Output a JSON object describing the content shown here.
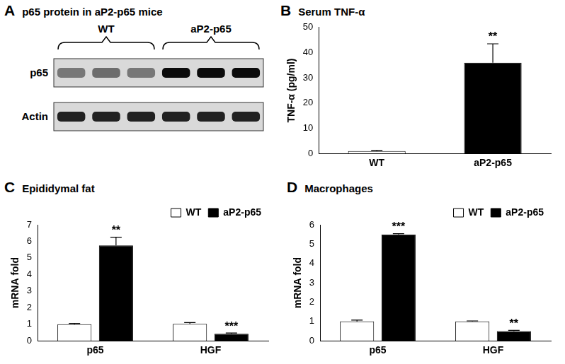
{
  "blot": {
    "panel": "A",
    "title": "p65 protein in aP2-p65 mice",
    "groups": [
      {
        "label": "WT",
        "lanes": 3
      },
      {
        "label": "aP2-p65",
        "lanes": 3
      }
    ],
    "rows": [
      {
        "label": "p65",
        "intensity": [
          0.45,
          0.5,
          0.45,
          0.95,
          0.95,
          0.95
        ]
      },
      {
        "label": "Actin",
        "intensity": [
          0.85,
          0.85,
          0.85,
          0.85,
          0.85,
          0.85
        ]
      }
    ]
  },
  "chart_data": [
    {
      "panel": "B",
      "type": "bar",
      "title": "Serum TNF-α",
      "y_label": "TNF-α (pg/ml)",
      "categories": [
        "WT",
        "aP2-p65"
      ],
      "values": [
        1,
        36
      ],
      "errors": [
        0.3,
        7.5
      ],
      "annotations": [
        null,
        "**"
      ],
      "colors": [
        "#ffffff",
        "#000000"
      ],
      "ylim": [
        0,
        50
      ],
      "yticks": [
        0,
        10,
        20,
        30,
        40,
        50
      ],
      "grid": false
    },
    {
      "panel": "C",
      "type": "bar",
      "title": "Epididymal fat",
      "y_label": "mRNA fold",
      "categories": [
        "p65",
        "HGF"
      ],
      "series": [
        {
          "name": "WT",
          "color": "#ffffff",
          "values": [
            1,
            1.02
          ],
          "errors": [
            0.05,
            0.08
          ],
          "annotations": [
            null,
            null
          ]
        },
        {
          "name": "aP2-p65",
          "color": "#000000",
          "values": [
            5.75,
            0.42
          ],
          "errors": [
            0.5,
            0.05
          ],
          "annotations": [
            "**",
            "***"
          ]
        }
      ],
      "ylim": [
        0,
        7
      ],
      "yticks": [
        0,
        1,
        2,
        3,
        4,
        5,
        6,
        7
      ],
      "grid": false,
      "legend": "top-right"
    },
    {
      "panel": "D",
      "type": "bar",
      "title": "Macrophages",
      "y_label": "mRNA fold",
      "categories": [
        "p65",
        "HGF"
      ],
      "series": [
        {
          "name": "WT",
          "color": "#ffffff",
          "values": [
            1,
            1
          ],
          "errors": [
            0.07,
            0.03
          ],
          "annotations": [
            null,
            null
          ]
        },
        {
          "name": "aP2-p65",
          "color": "#000000",
          "values": [
            5.5,
            0.5
          ],
          "errors": [
            0.04,
            0.04
          ],
          "annotations": [
            "***",
            "**"
          ]
        }
      ],
      "ylim": [
        0,
        6
      ],
      "yticks": [
        0,
        1,
        2,
        3,
        4,
        5,
        6
      ],
      "grid": false,
      "legend": "top-right"
    }
  ]
}
